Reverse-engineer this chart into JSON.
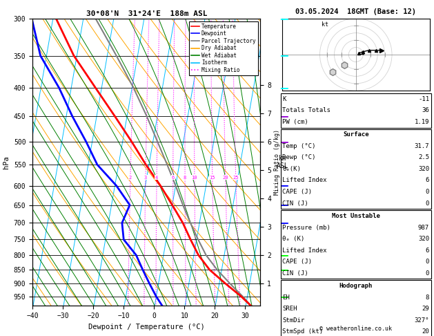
{
  "title_left": "30°08'N  31°24'E  188m ASL",
  "title_right": "03.05.2024  18GMT (Base: 12)",
  "xlabel": "Dewpoint / Temperature (°C)",
  "ylabel_left": "hPa",
  "pressure_ticks": [
    300,
    350,
    400,
    450,
    500,
    550,
    600,
    650,
    700,
    750,
    800,
    850,
    900,
    950
  ],
  "temp_range": [
    -40,
    35
  ],
  "km_ticks": [
    1,
    2,
    3,
    4,
    5,
    6,
    7,
    8
  ],
  "mixing_ratio_labels": [
    2,
    3,
    4,
    6,
    8,
    10,
    15,
    20,
    25
  ],
  "background": "#ffffff",
  "temp_color": "#ff0000",
  "dewp_color": "#0000ff",
  "parcel_color": "#808080",
  "dry_adiabat_color": "#ffa500",
  "wet_adiabat_color": "#008000",
  "isotherm_color": "#00bfff",
  "mixing_ratio_color": "#ff00ff",
  "legend_items": [
    "Temperature",
    "Dewpoint",
    "Parcel Trajectory",
    "Dry Adiabat",
    "Wet Adiabat",
    "Isotherm",
    "Mixing Ratio"
  ],
  "legend_colors": [
    "#ff0000",
    "#0000ff",
    "#808080",
    "#ffa500",
    "#008000",
    "#00bfff",
    "#ff00ff"
  ],
  "legend_styles": [
    "solid",
    "solid",
    "solid",
    "solid",
    "solid",
    "solid",
    "dotted"
  ],
  "K": -11,
  "TT": 36,
  "PW": 1.19,
  "surf_temp": 31.7,
  "surf_dewp": 2.5,
  "surf_theta_e": 320,
  "surf_li": 6,
  "surf_cape": 0,
  "surf_cin": 0,
  "mu_pressure": 987,
  "mu_theta_e": 320,
  "mu_li": 6,
  "mu_cape": 0,
  "mu_cin": 0,
  "hodo_eh": 8,
  "hodo_sreh": 29,
  "hodo_stmdir": "327°",
  "hodo_stmspd": 20,
  "temp_profile_p": [
    987,
    950,
    900,
    850,
    800,
    750,
    700,
    650,
    600,
    550,
    500,
    450,
    400,
    350,
    300
  ],
  "temp_profile_t": [
    31.7,
    28.0,
    22.0,
    16.0,
    11.5,
    8.0,
    4.5,
    0.0,
    -5.0,
    -11.0,
    -17.0,
    -24.0,
    -32.0,
    -41.0,
    -49.0
  ],
  "dewp_profile_p": [
    987,
    950,
    900,
    850,
    800,
    750,
    700,
    650,
    600,
    550,
    500,
    450,
    400,
    350,
    300
  ],
  "dewp_profile_t": [
    2.5,
    0.0,
    -3.0,
    -6.0,
    -9.0,
    -14.0,
    -15.5,
    -14.0,
    -19.5,
    -27.0,
    -32.0,
    -38.0,
    -44.0,
    -52.0,
    -57.0
  ],
  "parcel_profile_p": [
    987,
    950,
    900,
    850,
    800,
    750,
    700,
    650,
    600,
    550,
    500,
    450,
    400,
    350,
    300
  ],
  "parcel_profile_t": [
    31.7,
    28.5,
    23.5,
    18.5,
    14.0,
    10.5,
    7.0,
    3.5,
    0.0,
    -4.0,
    -8.5,
    -13.5,
    -19.5,
    -27.0,
    -36.0
  ],
  "wind_barb_pressures": [
    300,
    350,
    400,
    450,
    500,
    600,
    650,
    700,
    800,
    850,
    950
  ],
  "wind_barb_colors": [
    "#00ffff",
    "#00ffff",
    "#00ffff",
    "#9400d3",
    "#9400d3",
    "#0000ff",
    "#0000ff",
    "#0000ff",
    "#00ff00",
    "#00ff00",
    "#00ff00"
  ],
  "copyright": "© weatheronline.co.uk",
  "skew": 32,
  "P_min": 300,
  "P_max": 987,
  "T_min": -40,
  "T_max": 35
}
